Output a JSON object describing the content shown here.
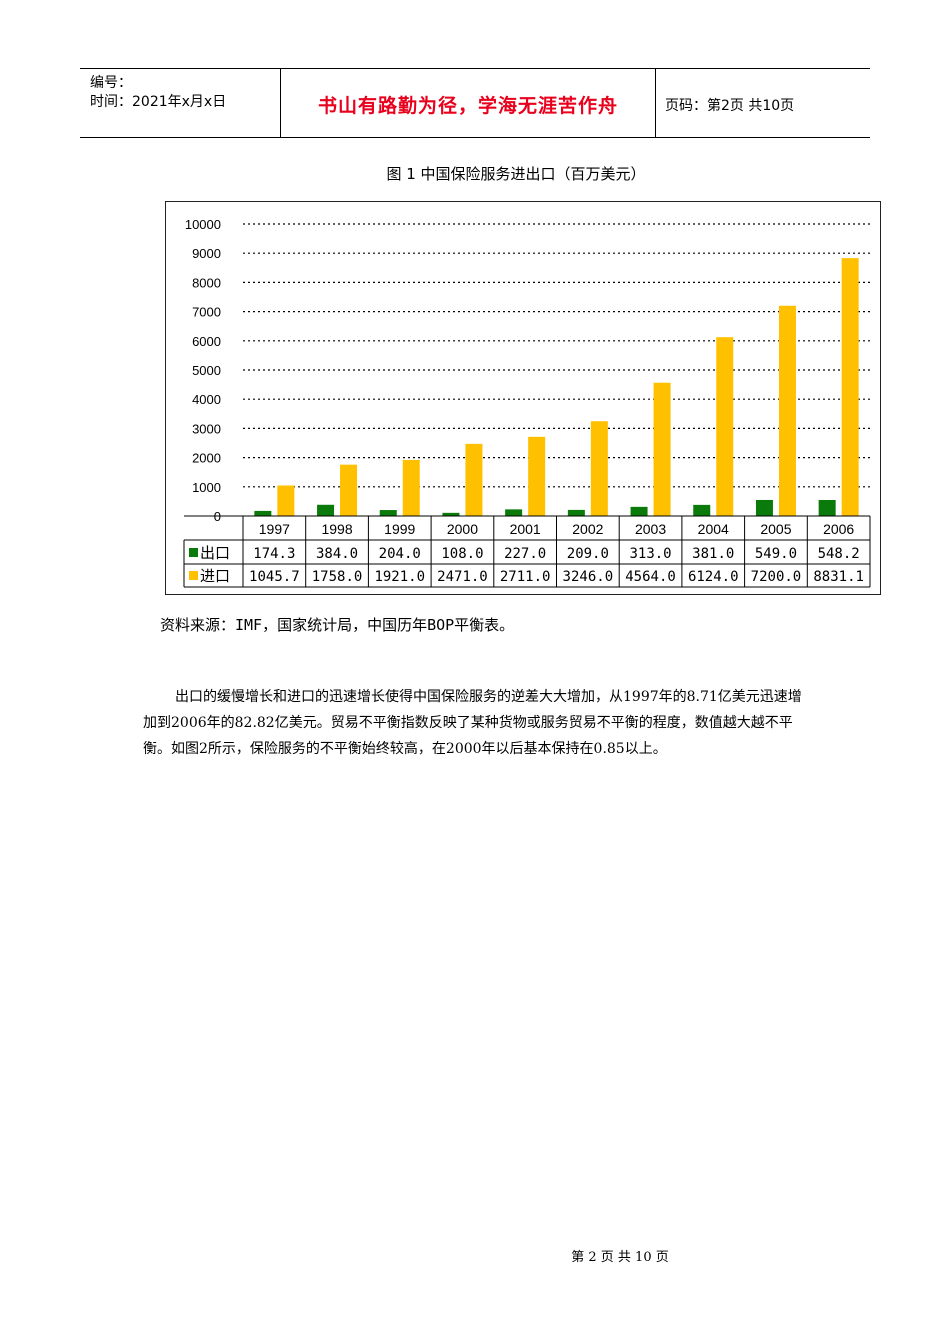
{
  "header": {
    "number_label": "编号：",
    "time_label": "时间：2021年x月x日",
    "motto": "书山有路勤为径，学海无涯苦作舟",
    "page_label": "页码：第2页  共10页"
  },
  "chart_data": {
    "type": "bar",
    "title": "图 1  中国保险服务进出口（百万美元）",
    "categories": [
      "1997",
      "1998",
      "1999",
      "2000",
      "2001",
      "2002",
      "2003",
      "2004",
      "2005",
      "2006"
    ],
    "series": [
      {
        "name": "出口",
        "color": "#0a7a0a",
        "values": [
          174.3,
          384.0,
          204.0,
          108.0,
          227.0,
          209.0,
          313.0,
          381.0,
          549.0,
          548.2
        ],
        "labels": [
          "174.3",
          "384.0",
          "204.0",
          "108.0",
          "227.0",
          "209.0",
          "313.0",
          "381.0",
          "549.0",
          "548.2"
        ]
      },
      {
        "name": "进口",
        "color": "#ffc000",
        "values": [
          1045.7,
          1758.0,
          1921.0,
          2471.0,
          2711.0,
          3246.0,
          4564.0,
          6124.0,
          7200.0,
          8831.1
        ],
        "labels": [
          "1045.7",
          "1758.0",
          "1921.0",
          "2471.0",
          "2711.0",
          "3246.0",
          "4564.0",
          "6124.0",
          "7200.0",
          "8831.1"
        ]
      }
    ],
    "ylim": [
      0,
      10000
    ],
    "yticks": [
      "0",
      "1000",
      "2000",
      "3000",
      "4000",
      "5000",
      "6000",
      "7000",
      "8000",
      "9000",
      "10000"
    ],
    "grid": true,
    "legend": "data-table"
  },
  "source": "资料来源：IMF，国家统计局，中国历年BOP平衡表。",
  "paragraph": "出口的缓慢增长和进口的迅速增长使得中国保险服务的逆差大大增加，从1997年的8.71亿美元迅速增加到2006年的82.82亿美元。贸易不平衡指数反映了某种货物或服务贸易不平衡的程度，数值越大越不平衡。如图2所示，保险服务的不平衡始终较高，在2000年以后基本保持在0.85以上。",
  "footer": "第 2 页 共 10 页"
}
